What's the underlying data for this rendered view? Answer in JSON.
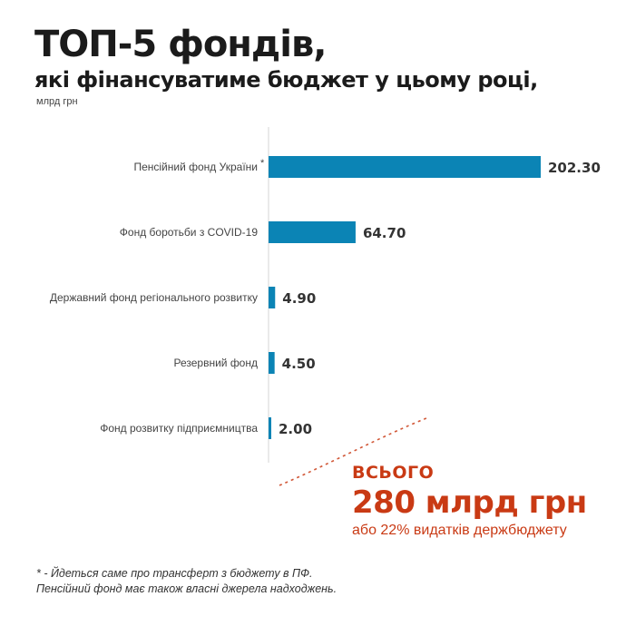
{
  "title": "ТОП-5 фондів,",
  "subtitle": "які фінансуватиме бюджет у цьому році,",
  "unit": "млрд грн",
  "chart_data": {
    "type": "bar",
    "orientation": "horizontal",
    "categories": [
      "Пенсійний фонд України",
      "Фонд боротьби з COVID-19",
      "Державний фонд регіонального розвитку",
      "Резервний фонд",
      "Фонд розвитку підприємництва"
    ],
    "values": [
      202.3,
      64.7,
      4.9,
      4.5,
      2.0
    ],
    "value_labels": [
      "202.30",
      "64.70",
      "4.90",
      "4.50",
      "2.00"
    ],
    "category_marks": [
      "*",
      "",
      "",
      "",
      ""
    ],
    "bar_color": "#0b84b5",
    "grid": false,
    "legend": "none"
  },
  "total": {
    "heading": "ВСЬОГО",
    "value": "280 млрд грн",
    "note": "або 22% видатків держбюджету",
    "color": "#c93a14"
  },
  "footnote": {
    "line1": "* - Йдеться саме про трансферт з бюджету в ПФ.",
    "line2": "Пенсійний фонд має також власні джерела надходжень."
  }
}
